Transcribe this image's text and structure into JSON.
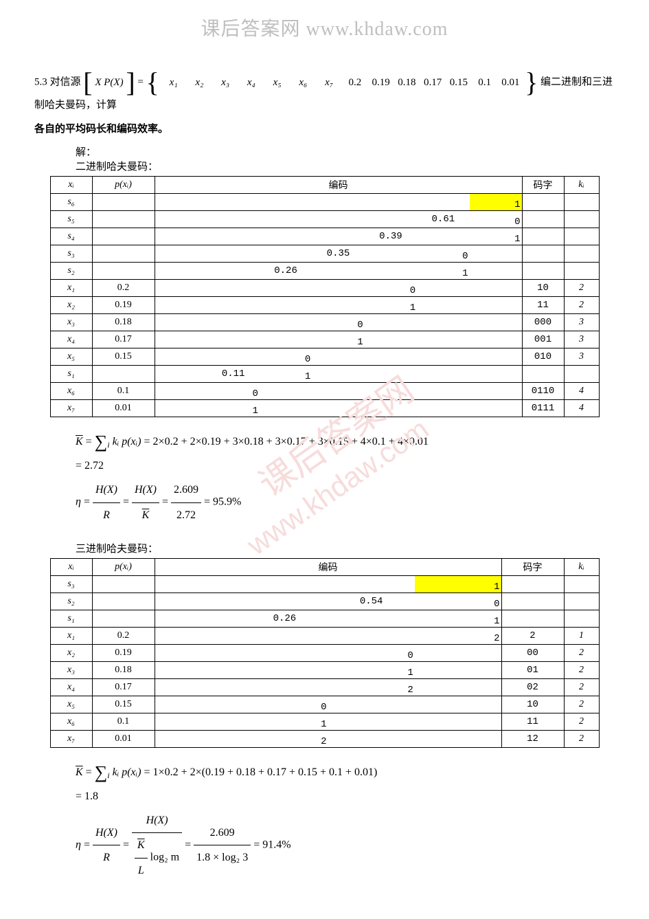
{
  "header_watermark": "课后答案网  www.khdaw.com",
  "problem": {
    "prefix": "5.3 对信源",
    "matrix_left_top": "X",
    "matrix_left_bottom": "P(X)",
    "symbols": [
      "x₁",
      "x₂",
      "x₃",
      "x₄",
      "x₅",
      "x₆",
      "x₇"
    ],
    "probs": [
      "0.2",
      "0.19",
      "0.18",
      "0.17",
      "0.15",
      "0.1",
      "0.01"
    ],
    "suffix": "编二进制和三进制哈夫曼码，计算",
    "line2": "各自的平均码长和编码效率。"
  },
  "solution_label": "解：",
  "binary": {
    "title": "二进制哈夫曼码：",
    "headers": {
      "xi": "xᵢ",
      "px": "p(xᵢ)",
      "enc": "编码",
      "code": "码字",
      "ki": "kᵢ"
    },
    "tree_cols": 7,
    "rows": [
      {
        "xi": "s₆",
        "px": "",
        "tree": [
          "",
          "",
          "",
          "",
          "",
          "",
          "1"
        ],
        "yellow_col": 6,
        "code": "",
        "ki": ""
      },
      {
        "xi": "s₅",
        "px": "",
        "tree": [
          "",
          "",
          "",
          "",
          "",
          "0.61",
          "0"
        ],
        "code": "",
        "ki": ""
      },
      {
        "xi": "s₄",
        "px": "",
        "tree": [
          "",
          "",
          "",
          "",
          "0.39",
          "",
          "1"
        ],
        "code": "",
        "ki": ""
      },
      {
        "xi": "s₃",
        "px": "",
        "tree": [
          "",
          "",
          "",
          "0.35",
          "",
          "0",
          ""
        ],
        "code": "",
        "ki": ""
      },
      {
        "xi": "s₂",
        "px": "",
        "tree": [
          "",
          "",
          "0.26",
          "",
          "",
          "1",
          ""
        ],
        "code": "",
        "ki": ""
      },
      {
        "xi": "x₁",
        "px": "0.2",
        "tree": [
          "",
          "",
          "",
          "",
          "0",
          "",
          ""
        ],
        "code": "10",
        "ki": "2"
      },
      {
        "xi": "x₂",
        "px": "0.19",
        "tree": [
          "",
          "",
          "",
          "",
          "1",
          "",
          ""
        ],
        "code": "11",
        "ki": "2"
      },
      {
        "xi": "x₃",
        "px": "0.18",
        "tree": [
          "",
          "",
          "",
          "0",
          "",
          "",
          ""
        ],
        "code": "000",
        "ki": "3"
      },
      {
        "xi": "x₄",
        "px": "0.17",
        "tree": [
          "",
          "",
          "",
          "1",
          "",
          "",
          ""
        ],
        "code": "001",
        "ki": "3"
      },
      {
        "xi": "x₅",
        "px": "0.15",
        "tree": [
          "",
          "",
          "0",
          "",
          "",
          "",
          ""
        ],
        "code": "010",
        "ki": "3"
      },
      {
        "xi": "s₁",
        "px": "",
        "tree": [
          "",
          "0.11",
          "1",
          "",
          "",
          "",
          ""
        ],
        "code": "",
        "ki": ""
      },
      {
        "xi": "x₆",
        "px": "0.1",
        "tree": [
          "",
          "0",
          "",
          "",
          "",
          "",
          ""
        ],
        "code": "0110",
        "ki": "4"
      },
      {
        "xi": "x₇",
        "px": "0.01",
        "tree": [
          "",
          "1",
          "",
          "",
          "",
          "",
          ""
        ],
        "code": "0111",
        "ki": "4"
      }
    ],
    "math": {
      "line1": "= 2×0.2 + 2×0.19 + 3×0.18 + 3×0.17 + 3×0.15 + 4×0.1 + 4×0.01",
      "kbar": "K̄",
      "kval": "= 2.72",
      "hx": "H(X)",
      "r": "R",
      "hx_val": "2.609",
      "kbar_val": "2.72",
      "eta_result": "= 95.9%"
    }
  },
  "ternary": {
    "title": "三进制哈夫曼码：",
    "headers": {
      "xi": "xᵢ",
      "px": "p(xᵢ)",
      "enc": "编码",
      "code": "码字",
      "ki": "kᵢ"
    },
    "tree_cols": 4,
    "rows": [
      {
        "xi": "s₃",
        "px": "",
        "tree": [
          "",
          "",
          "",
          "1"
        ],
        "yellow_col": 3,
        "code": "",
        "ki": ""
      },
      {
        "xi": "s₂",
        "px": "",
        "tree": [
          "",
          "",
          "0.54",
          "0"
        ],
        "code": "",
        "ki": ""
      },
      {
        "xi": "s₁",
        "px": "",
        "tree": [
          "",
          "0.26",
          "",
          "1"
        ],
        "code": "",
        "ki": ""
      },
      {
        "xi": "x₁",
        "px": "0.2",
        "tree": [
          "",
          "",
          "",
          "2"
        ],
        "code": "2",
        "ki": "1"
      },
      {
        "xi": "x₂",
        "px": "0.19",
        "tree": [
          "",
          "",
          "0",
          ""
        ],
        "code": "00",
        "ki": "2"
      },
      {
        "xi": "x₃",
        "px": "0.18",
        "tree": [
          "",
          "",
          "1",
          ""
        ],
        "code": "01",
        "ki": "2"
      },
      {
        "xi": "x₄",
        "px": "0.17",
        "tree": [
          "",
          "",
          "2",
          ""
        ],
        "code": "02",
        "ki": "2"
      },
      {
        "xi": "x₅",
        "px": "0.15",
        "tree": [
          "",
          "0",
          "",
          ""
        ],
        "code": "10",
        "ki": "2"
      },
      {
        "xi": "x₆",
        "px": "0.1",
        "tree": [
          "",
          "1",
          "",
          ""
        ],
        "code": "11",
        "ki": "2"
      },
      {
        "xi": "x₇",
        "px": "0.01",
        "tree": [
          "",
          "2",
          "",
          ""
        ],
        "code": "12",
        "ki": "2"
      }
    ],
    "math": {
      "line1": "= 1×0.2 + 2×(0.19 + 0.18 + 0.17 + 0.15 + 0.1 + 0.01)",
      "kval": "= 1.8",
      "hx_val": "2.609",
      "den_expr": "1.8 × log₂ 3",
      "log2m": "log₂ m",
      "eta_result": "= 91.4%"
    }
  },
  "watermark_text": "课后答案网 www.khdaw.com"
}
